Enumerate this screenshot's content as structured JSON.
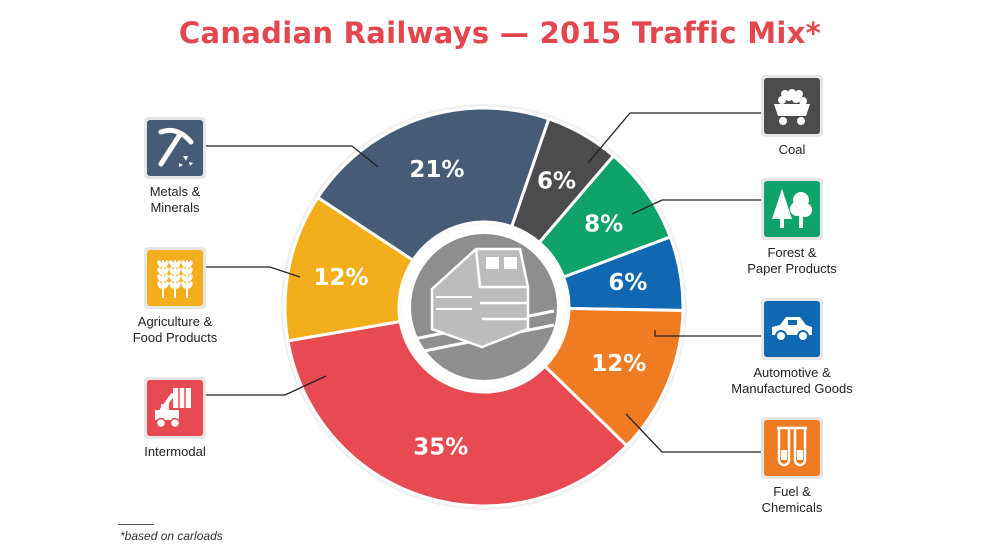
{
  "title": "Canadian Railways — 2015 Traffic Mix*",
  "title_color": "#e2474f",
  "footnote": "*based on carloads",
  "chart_data": {
    "type": "pie",
    "variant": "donut",
    "title": "Canadian Railways — 2015 Traffic Mix*",
    "unit": "%",
    "slices": [
      {
        "label": "Coal",
        "value": 6,
        "display": "6%",
        "color": "#4c4c4e",
        "icon": "coal-cart-icon"
      },
      {
        "label": "Forest & Paper Products",
        "value": 8,
        "display": "8%",
        "color": "#0fa36b",
        "icon": "trees-icon"
      },
      {
        "label": "Automotive & Manufactured Goods",
        "value": 6,
        "display": "6%",
        "color": "#1068b3",
        "icon": "car-icon"
      },
      {
        "label": "Fuel & Chemicals",
        "value": 12,
        "display": "12%",
        "color": "#ef7b22",
        "icon": "test-tubes-icon"
      },
      {
        "label": "Intermodal",
        "value": 35,
        "display": "35%",
        "color": "#e84a51",
        "icon": "container-handler-icon"
      },
      {
        "label": "Agriculture & Food Products",
        "value": 12,
        "display": "12%",
        "color": "#f3af1b",
        "icon": "wheat-icon"
      },
      {
        "label": "Metals & Minerals",
        "value": 21,
        "display": "21%",
        "color": "#465b75",
        "icon": "pickaxe-icon"
      }
    ],
    "center_icon": "locomotive-icon",
    "footnote": "*based on carloads"
  }
}
